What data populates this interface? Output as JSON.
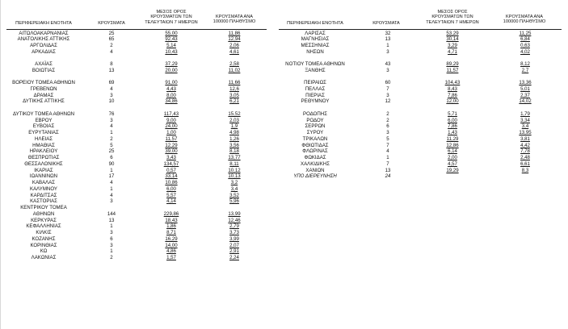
{
  "headers": {
    "region": "ΠΕΡΙΦΕΡΕΙΑΚΗ ΕΝΟΤΗΤΑ",
    "cases": "ΚΡΟΥΣΜΑΤΑ",
    "avg_line1": "ΜΕΣΟΣ ΟΡΟΣ",
    "avg_line2": "ΚΡΟΥΣΜΑΤΩΝ ΤΩΝ",
    "avg_line3": "ΤΕΛΕΥΤΑΙΩΝ 7 ΗΜΕΡΩΝ",
    "per_line1": "ΚΡΟΥΣΜΑΤΑ ΑΝΑ",
    "per_line2": "100000 ΠΛΗΘΥΣΜΟ"
  },
  "left_table": [
    {
      "region": "ΑΙΤΩΛΟΑΚΑΡΝΑΝΙΑΣ",
      "cases": "25",
      "avg": "55,00",
      "per100k": "11,86"
    },
    {
      "region": "ΑΝΑΤΟΛΙΚΗΣ ΑΤΤΙΚΗΣ",
      "cases": "65",
      "avg": "92,43",
      "per100k": "12,94"
    },
    {
      "region": "ΑΡΓΟΛΙΔΑΣ",
      "cases": "2",
      "avg": "5,14",
      "per100k": "2,06"
    },
    {
      "region": "ΑΡΚΑΔΙΑΣ",
      "cases": "4",
      "avg": "10,43",
      "per100k": "4,61"
    },
    {
      "spacer": true
    },
    {
      "region": "ΑΧΑΪΑΣ",
      "cases": "8",
      "avg": "37,29",
      "per100k": "2,58"
    },
    {
      "region": "ΒΟΙΩΤΙΑΣ",
      "cases": "13",
      "avg": "20,00",
      "per100k": "11,02"
    },
    {
      "spacer": true
    },
    {
      "region": "ΒΟΡΕΙΟΥ ΤΟΜΕΑ ΑΘΗΝΩΝ",
      "cases": "69",
      "avg": "91,00",
      "per100k": "11,66"
    },
    {
      "region": "ΓΡΕΒΕΝΩΝ",
      "cases": "4",
      "avg": "4,43",
      "per100k": "12,6"
    },
    {
      "region": "ΔΡΑΜΑΣ",
      "cases": "3",
      "avg": "8,00",
      "per100k": "3,05"
    },
    {
      "region": "ΔΥΤΙΚΗΣ ΑΤΤΙΚΗΣ",
      "cases": "10",
      "avg": "34,86",
      "per100k": "6,21"
    },
    {
      "spacer": true
    },
    {
      "region": "ΔΥΤΙΚΟΥ ΤΟΜΕΑ ΑΘΗΝΩΝ",
      "cases": "76",
      "avg": "117,43",
      "per100k": "15,52"
    },
    {
      "region": "ΕΒΡΟΥ",
      "cases": "3",
      "avg": "9,00",
      "per100k": "2,03"
    },
    {
      "region": "ΕΥΒΟΙΑΣ",
      "cases": "4",
      "avg": "24,00",
      "per100k": "1,9"
    },
    {
      "region": "ΕΥΡΥΤΑΝΙΑΣ",
      "cases": "1",
      "avg": "1,00",
      "per100k": "4,98"
    },
    {
      "region": "ΗΛΕΙΑΣ",
      "cases": "2",
      "avg": "11,57",
      "per100k": "1,26"
    },
    {
      "region": "ΗΜΑΘΙΑΣ",
      "cases": "5",
      "avg": "12,29",
      "per100k": "3,56"
    },
    {
      "region": "ΗΡΑΚΛΕΙΟΥ",
      "cases": "25",
      "avg": "39,00",
      "per100k": "8,18"
    },
    {
      "region": "ΘΕΣΠΡΩΤΙΑΣ",
      "cases": "6",
      "avg": "3,43",
      "per100k": "13,77"
    },
    {
      "region": "ΘΕΣΣΑΛΟΝΙΚΗΣ",
      "cases": "90",
      "avg": "134,57",
      "per100k": "8,11"
    },
    {
      "region": "ΙΚΑΡΙΑΣ",
      "cases": "1",
      "avg": "0,57",
      "per100k": "10,12"
    },
    {
      "region": "ΙΩΑΝΝΙΝΩΝ",
      "cases": "17",
      "avg": "33,14",
      "per100k": "10,13"
    },
    {
      "region": "ΚΑΒΑΛΑΣ",
      "cases": "4",
      "avg": "10,86",
      "per100k": "3,2"
    },
    {
      "region": "ΚΑΛΥΜΝΟΥ",
      "cases": "1",
      "avg": "6,00",
      "per100k": "3,4"
    },
    {
      "region": "ΚΑΡΔΙΤΣΑΣ",
      "cases": "4",
      "avg": "5,57",
      "per100k": "3,52"
    },
    {
      "region": "ΚΑΣΤΟΡΙΑΣ",
      "cases": "3",
      "avg": "4,14",
      "per100k": "5,96"
    },
    {
      "region": "ΚΕΝΤΡΙΚΟΥ ΤΟΜΕΑ",
      "cases": "",
      "avg": "",
      "per100k": ""
    },
    {
      "region": "ΑΘΗΝΩΝ",
      "cases": "144",
      "avg": "229,86",
      "per100k": "13,99"
    },
    {
      "region": "ΚΕΡΚΥΡΑΣ",
      "cases": "13",
      "avg": "18,43",
      "per100k": "12,46"
    },
    {
      "region": "ΚΕΦΑΛΛΗΝΙΑΣ",
      "cases": "1",
      "avg": "1,86",
      "per100k": "2,79"
    },
    {
      "region": "ΚΙΛΚΙΣ",
      "cases": "3",
      "avg": "8,71",
      "per100k": "3,73"
    },
    {
      "region": "ΚΟΖΑΝΗΣ",
      "cases": "6",
      "avg": "16,29",
      "per100k": "3,99"
    },
    {
      "region": "ΚΟΡΙΝΘΙΑΣ",
      "cases": "3",
      "avg": "14,00",
      "per100k": "2,07"
    },
    {
      "region": "ΚΩ",
      "cases": "1",
      "avg": "4,86",
      "per100k": "2,91"
    },
    {
      "region": "ΛΑΚΩΝΙΑΣ",
      "cases": "2",
      "avg": "1,57",
      "per100k": "2,24"
    }
  ],
  "right_table": [
    {
      "region": "ΛΑΡΙΣΑΣ",
      "cases": "32",
      "avg": "53,29",
      "per100k": "11,25"
    },
    {
      "region": "ΜΑΓΝΗΣΙΑΣ",
      "cases": "13",
      "avg": "30,14",
      "per100k": "6,84"
    },
    {
      "region": "ΜΕΣΣΗΝΙΑΣ",
      "cases": "1",
      "avg": "3,29",
      "per100k": "0,63"
    },
    {
      "region": "ΝΗΣΩΝ",
      "cases": "3",
      "avg": "4,71",
      "per100k": "4,02"
    },
    {
      "spacer": true
    },
    {
      "region": "ΝΟΤΙΟΥ ΤΟΜΕΑ ΑΘΗΝΩΝ",
      "cases": "43",
      "avg": "89,29",
      "per100k": "8,12"
    },
    {
      "region": "ΞΑΝΘΗΣ",
      "cases": "3",
      "avg": "11,57",
      "per100k": "2,7"
    },
    {
      "spacer": true
    },
    {
      "region": "ΠΕΙΡΑΙΩΣ",
      "cases": "60",
      "avg": "104,43",
      "per100k": "13,36"
    },
    {
      "region": "ΠΕΛΛΑΣ",
      "cases": "7",
      "avg": "8,43",
      "per100k": "5,01"
    },
    {
      "region": "ΠΙΕΡΙΑΣ",
      "cases": "3",
      "avg": "7,86",
      "per100k": "2,37"
    },
    {
      "region": "ΡΕΘΥΜΝΟΥ",
      "cases": "12",
      "avg": "12,00",
      "per100k": "14,02"
    },
    {
      "spacer": true
    },
    {
      "region": "ΡΟΔΟΠΗΣ",
      "cases": "2",
      "avg": "5,71",
      "per100k": "1,79"
    },
    {
      "region": "ΡΟΔΟΥ",
      "cases": "2",
      "avg": "6,00",
      "per100k": "3,34"
    },
    {
      "region": "ΣΕΡΡΩΝ",
      "cases": "6",
      "avg": "7,86",
      "per100k": "3,4"
    },
    {
      "region": "ΣΥΡΟΥ",
      "cases": "3",
      "avg": "1,43",
      "per100k": "13,95"
    },
    {
      "region": "ΤΡΙΚΑΛΩΝ",
      "cases": "5",
      "avg": "11,29",
      "per100k": "3,81"
    },
    {
      "region": "ΦΘΙΩΤΙΔΑΣ",
      "cases": "7",
      "avg": "12,86",
      "per100k": "4,42"
    },
    {
      "region": "ΦΛΩΡΙΝΑΣ",
      "cases": "4",
      "avg": "6,14",
      "per100k": "7,78"
    },
    {
      "region": "ΦΩΚΙΔΑΣ",
      "cases": "1",
      "avg": "2,00",
      "per100k": "2,48"
    },
    {
      "region": "ΧΑΛΚΙΔΙΚΗΣ",
      "cases": "7",
      "avg": "4,57",
      "per100k": "6,61"
    },
    {
      "region": "ΧΑΝΙΩΝ",
      "cases": "13",
      "avg": "19,29",
      "per100k": "8,3"
    },
    {
      "region": "ΥΠΟ ΔΙΕΡΕΥΝΗΣΗ",
      "cases": "24",
      "avg": "",
      "per100k": "",
      "italic": true
    }
  ]
}
